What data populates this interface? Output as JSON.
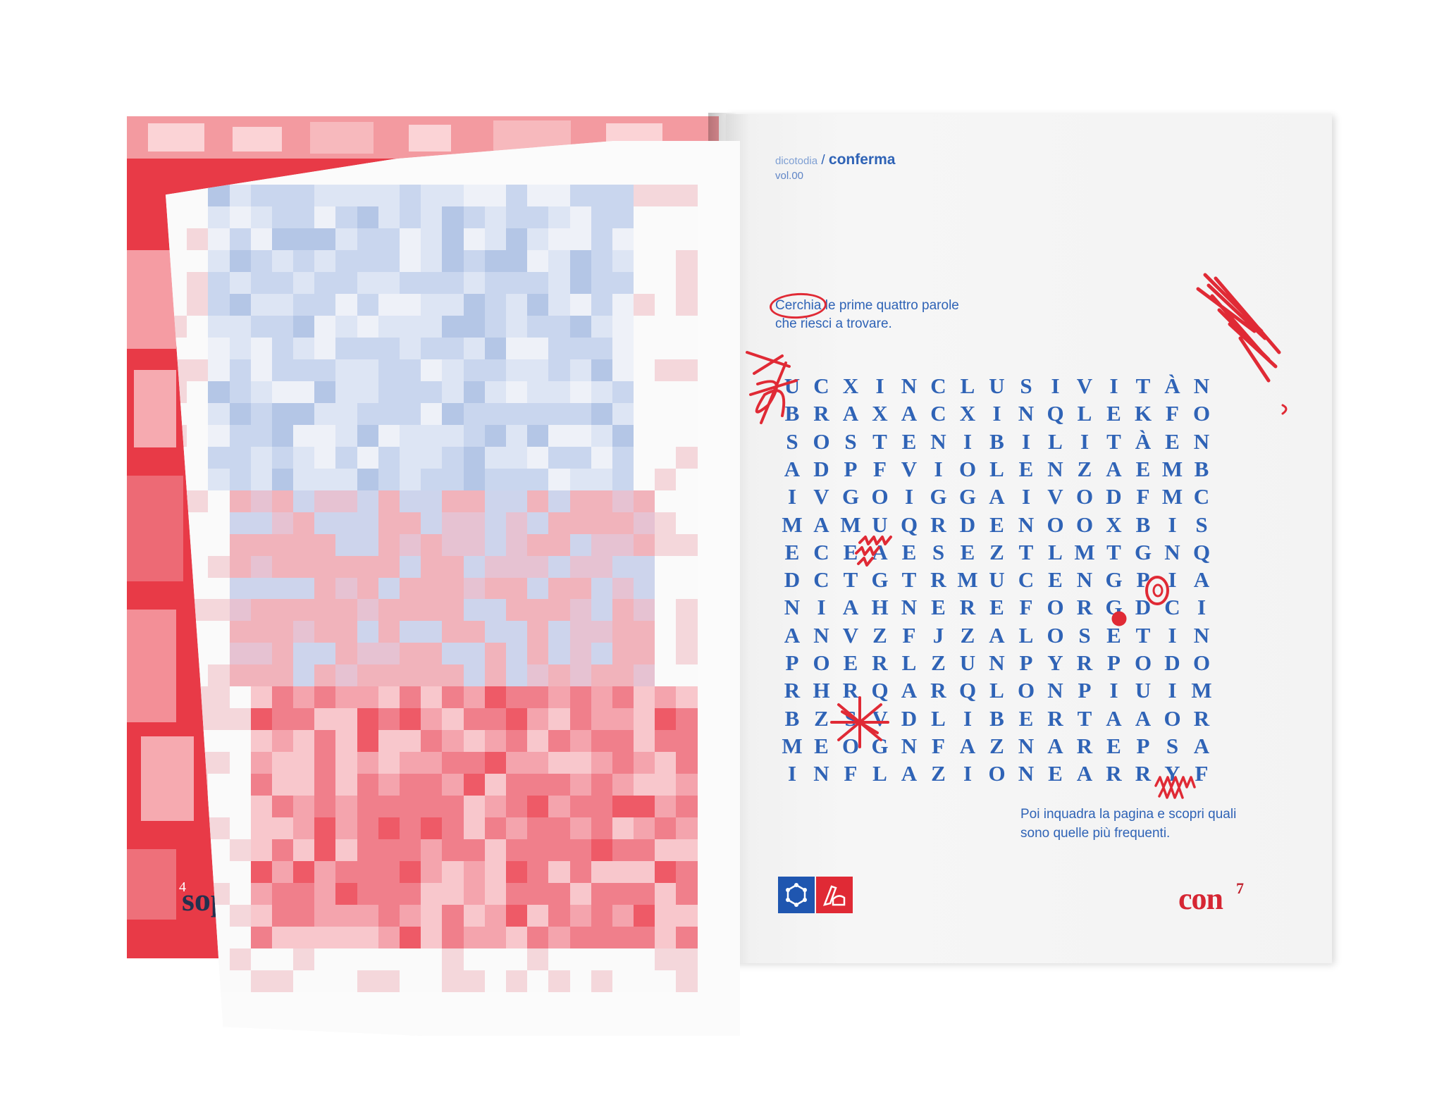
{
  "right_page": {
    "header_series": "dicotodia",
    "header_separator": " / ",
    "header_word": "conferma",
    "volume": "vol.00",
    "instruction_circled": "Cerchia",
    "instruction_rest_line1": " le prime quattro parole",
    "instruction_line2": "che riesci a trovare.",
    "footer_line1": "Poi inquadra la pagina e scopri quali",
    "footer_line2": "sono quelle più frequenti.",
    "corner_word": "con",
    "page_number": "7",
    "logos": [
      "network-logo-icon",
      "hand-writing-logo-icon"
    ],
    "colors": {
      "blue": "#2f63b6",
      "red": "#e02a35"
    },
    "word_search": [
      "UCXINCLUSIVITÀN",
      "BRAXACXINQLEKFO",
      "SOSTENIBILITÀEN",
      "ADPFVIOLENZAEMB",
      "IVGOIGGAIVODFMC",
      "MAMUQRDENOOXBIS",
      "ECEAESEZTLMTGNQ",
      "DCTGTRMUCENGPIA",
      "NIAHNEREFORGDCI",
      "ANVZFJZALOSETIN",
      "POERLZUNPYRPODO",
      "RHRQARQLONPIUIM",
      "BZSVDLIBERTAAOR",
      "MEOGNFAZNAREPSA",
      "INFLAZIONEARRYF"
    ]
  },
  "left_page": {
    "page_number": "4",
    "peek_word": "sop"
  }
}
